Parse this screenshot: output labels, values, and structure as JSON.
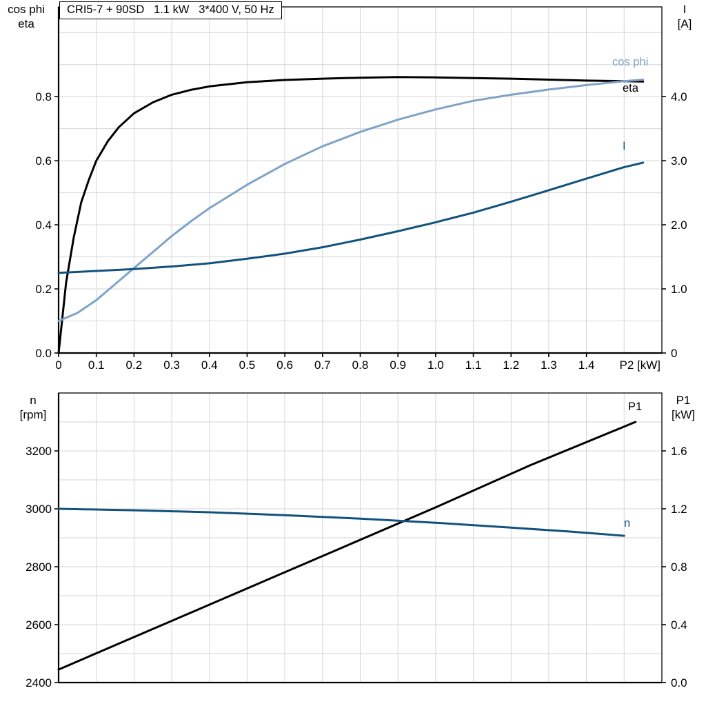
{
  "title_box": {
    "text": "CRI5-7 + 90SD   1.1 kW   3*400 V, 50 Hz"
  },
  "colors": {
    "eta": "#000000",
    "cos_phi": "#7fa3c8",
    "current": "#10527d",
    "speed": "#10527d",
    "power": "#000000",
    "grid": "#d5d5d5",
    "axis": "#000000",
    "text": "#000000"
  },
  "chart_data": [
    {
      "id": "electrical-curves",
      "type": "line",
      "title": "CRI5-7 + 90SD   1.1 kW   3*400 V, 50 Hz",
      "x_axis": {
        "label": "P2 [kW]",
        "range": [
          0,
          1.6
        ],
        "grid_step": 0.1,
        "ticks": [
          0,
          0.1,
          0.2,
          0.3,
          0.4,
          0.5,
          0.6,
          0.7,
          0.8,
          0.9,
          1.0,
          1.1,
          1.2,
          1.3,
          1.4
        ],
        "tick_labels": [
          "0",
          "0.1",
          "0.2",
          "0.3",
          "0.4",
          "0.5",
          "0.6",
          "0.7",
          "0.8",
          "0.9",
          "1.0",
          "1.1",
          "1.2",
          "1.3",
          "1.4"
        ]
      },
      "y_left": {
        "label_lines": [
          "cos phi",
          "eta"
        ],
        "range": [
          0,
          1.08
        ],
        "grid_step": 0.1,
        "ticks": [
          0,
          0.2,
          0.4,
          0.6,
          0.8
        ],
        "tick_labels": [
          "0.0",
          "0.2",
          "0.4",
          "0.6",
          "0.8"
        ]
      },
      "y_right": {
        "label_lines": [
          "I",
          "[A]"
        ],
        "range": [
          0,
          5.4
        ],
        "ticks": [
          0,
          1,
          2,
          3,
          4
        ],
        "tick_labels": [
          "0",
          "1.0",
          "2.0",
          "3.0",
          "4.0"
        ]
      },
      "series": [
        {
          "name": "eta",
          "axis": "left",
          "color_key": "eta",
          "points": [
            [
              0,
              0
            ],
            [
              0.02,
              0.22
            ],
            [
              0.04,
              0.36
            ],
            [
              0.06,
              0.47
            ],
            [
              0.08,
              0.54
            ],
            [
              0.1,
              0.6
            ],
            [
              0.13,
              0.66
            ],
            [
              0.16,
              0.705
            ],
            [
              0.2,
              0.748
            ],
            [
              0.25,
              0.782
            ],
            [
              0.3,
              0.806
            ],
            [
              0.35,
              0.821
            ],
            [
              0.4,
              0.832
            ],
            [
              0.5,
              0.845
            ],
            [
              0.6,
              0.852
            ],
            [
              0.7,
              0.856
            ],
            [
              0.8,
              0.859
            ],
            [
              0.9,
              0.861
            ],
            [
              1.0,
              0.86
            ],
            [
              1.1,
              0.858
            ],
            [
              1.2,
              0.856
            ],
            [
              1.3,
              0.853
            ],
            [
              1.4,
              0.85
            ],
            [
              1.5,
              0.848
            ],
            [
              1.55,
              0.847
            ]
          ]
        },
        {
          "name": "cos phi",
          "axis": "left",
          "color_key": "cos_phi",
          "points": [
            [
              0,
              0.1
            ],
            [
              0.05,
              0.125
            ],
            [
              0.1,
              0.165
            ],
            [
              0.15,
              0.215
            ],
            [
              0.2,
              0.265
            ],
            [
              0.25,
              0.315
            ],
            [
              0.3,
              0.365
            ],
            [
              0.35,
              0.41
            ],
            [
              0.4,
              0.452
            ],
            [
              0.5,
              0.525
            ],
            [
              0.6,
              0.59
            ],
            [
              0.7,
              0.645
            ],
            [
              0.8,
              0.69
            ],
            [
              0.9,
              0.728
            ],
            [
              1.0,
              0.76
            ],
            [
              1.1,
              0.787
            ],
            [
              1.2,
              0.806
            ],
            [
              1.3,
              0.822
            ],
            [
              1.4,
              0.836
            ],
            [
              1.5,
              0.848
            ],
            [
              1.55,
              0.853
            ]
          ]
        },
        {
          "name": "I",
          "axis": "right",
          "color_key": "current",
          "points": [
            [
              0,
              1.25
            ],
            [
              0.1,
              1.28
            ],
            [
              0.2,
              1.31
            ],
            [
              0.3,
              1.35
            ],
            [
              0.4,
              1.4
            ],
            [
              0.5,
              1.47
            ],
            [
              0.6,
              1.55
            ],
            [
              0.7,
              1.65
            ],
            [
              0.8,
              1.77
            ],
            [
              0.9,
              1.9
            ],
            [
              1.0,
              2.04
            ],
            [
              1.1,
              2.19
            ],
            [
              1.2,
              2.36
            ],
            [
              1.3,
              2.54
            ],
            [
              1.4,
              2.72
            ],
            [
              1.5,
              2.9
            ],
            [
              1.55,
              2.97
            ]
          ]
        }
      ]
    },
    {
      "id": "mechanical-curves",
      "type": "line",
      "x_axis": {
        "label": "",
        "range": [
          0,
          1.6
        ],
        "grid_step": 0.1,
        "ticks": [],
        "tick_labels": []
      },
      "y_left": {
        "label_lines": [
          "n",
          "[rpm]"
        ],
        "range": [
          2400,
          3400
        ],
        "grid_step": 100,
        "ticks": [
          2400,
          2600,
          2800,
          3000,
          3200
        ],
        "tick_labels": [
          "2400",
          "2600",
          "2800",
          "3000",
          "3200"
        ]
      },
      "y_right": {
        "label_lines": [
          "P1",
          "[kW]"
        ],
        "range": [
          0,
          2.0
        ],
        "ticks": [
          0,
          0.4,
          0.8,
          1.2,
          1.6
        ],
        "tick_labels": [
          "0.0",
          "0.4",
          "0.8",
          "1.2",
          "1.6"
        ]
      },
      "series": [
        {
          "name": "P1",
          "axis": "right",
          "color_key": "power",
          "points": [
            [
              0,
              0.09
            ],
            [
              0.25,
              0.37
            ],
            [
              0.5,
              0.65
            ],
            [
              0.75,
              0.93
            ],
            [
              1.0,
              1.21
            ],
            [
              1.25,
              1.5
            ],
            [
              1.53,
              1.8
            ]
          ]
        },
        {
          "name": "n",
          "axis": "left",
          "color_key": "speed",
          "points": [
            [
              0,
              3000
            ],
            [
              0.2,
              2995
            ],
            [
              0.4,
              2988
            ],
            [
              0.6,
              2978
            ],
            [
              0.8,
              2966
            ],
            [
              1.0,
              2952
            ],
            [
              1.2,
              2935
            ],
            [
              1.35,
              2922
            ],
            [
              1.5,
              2907
            ]
          ]
        }
      ]
    }
  ]
}
